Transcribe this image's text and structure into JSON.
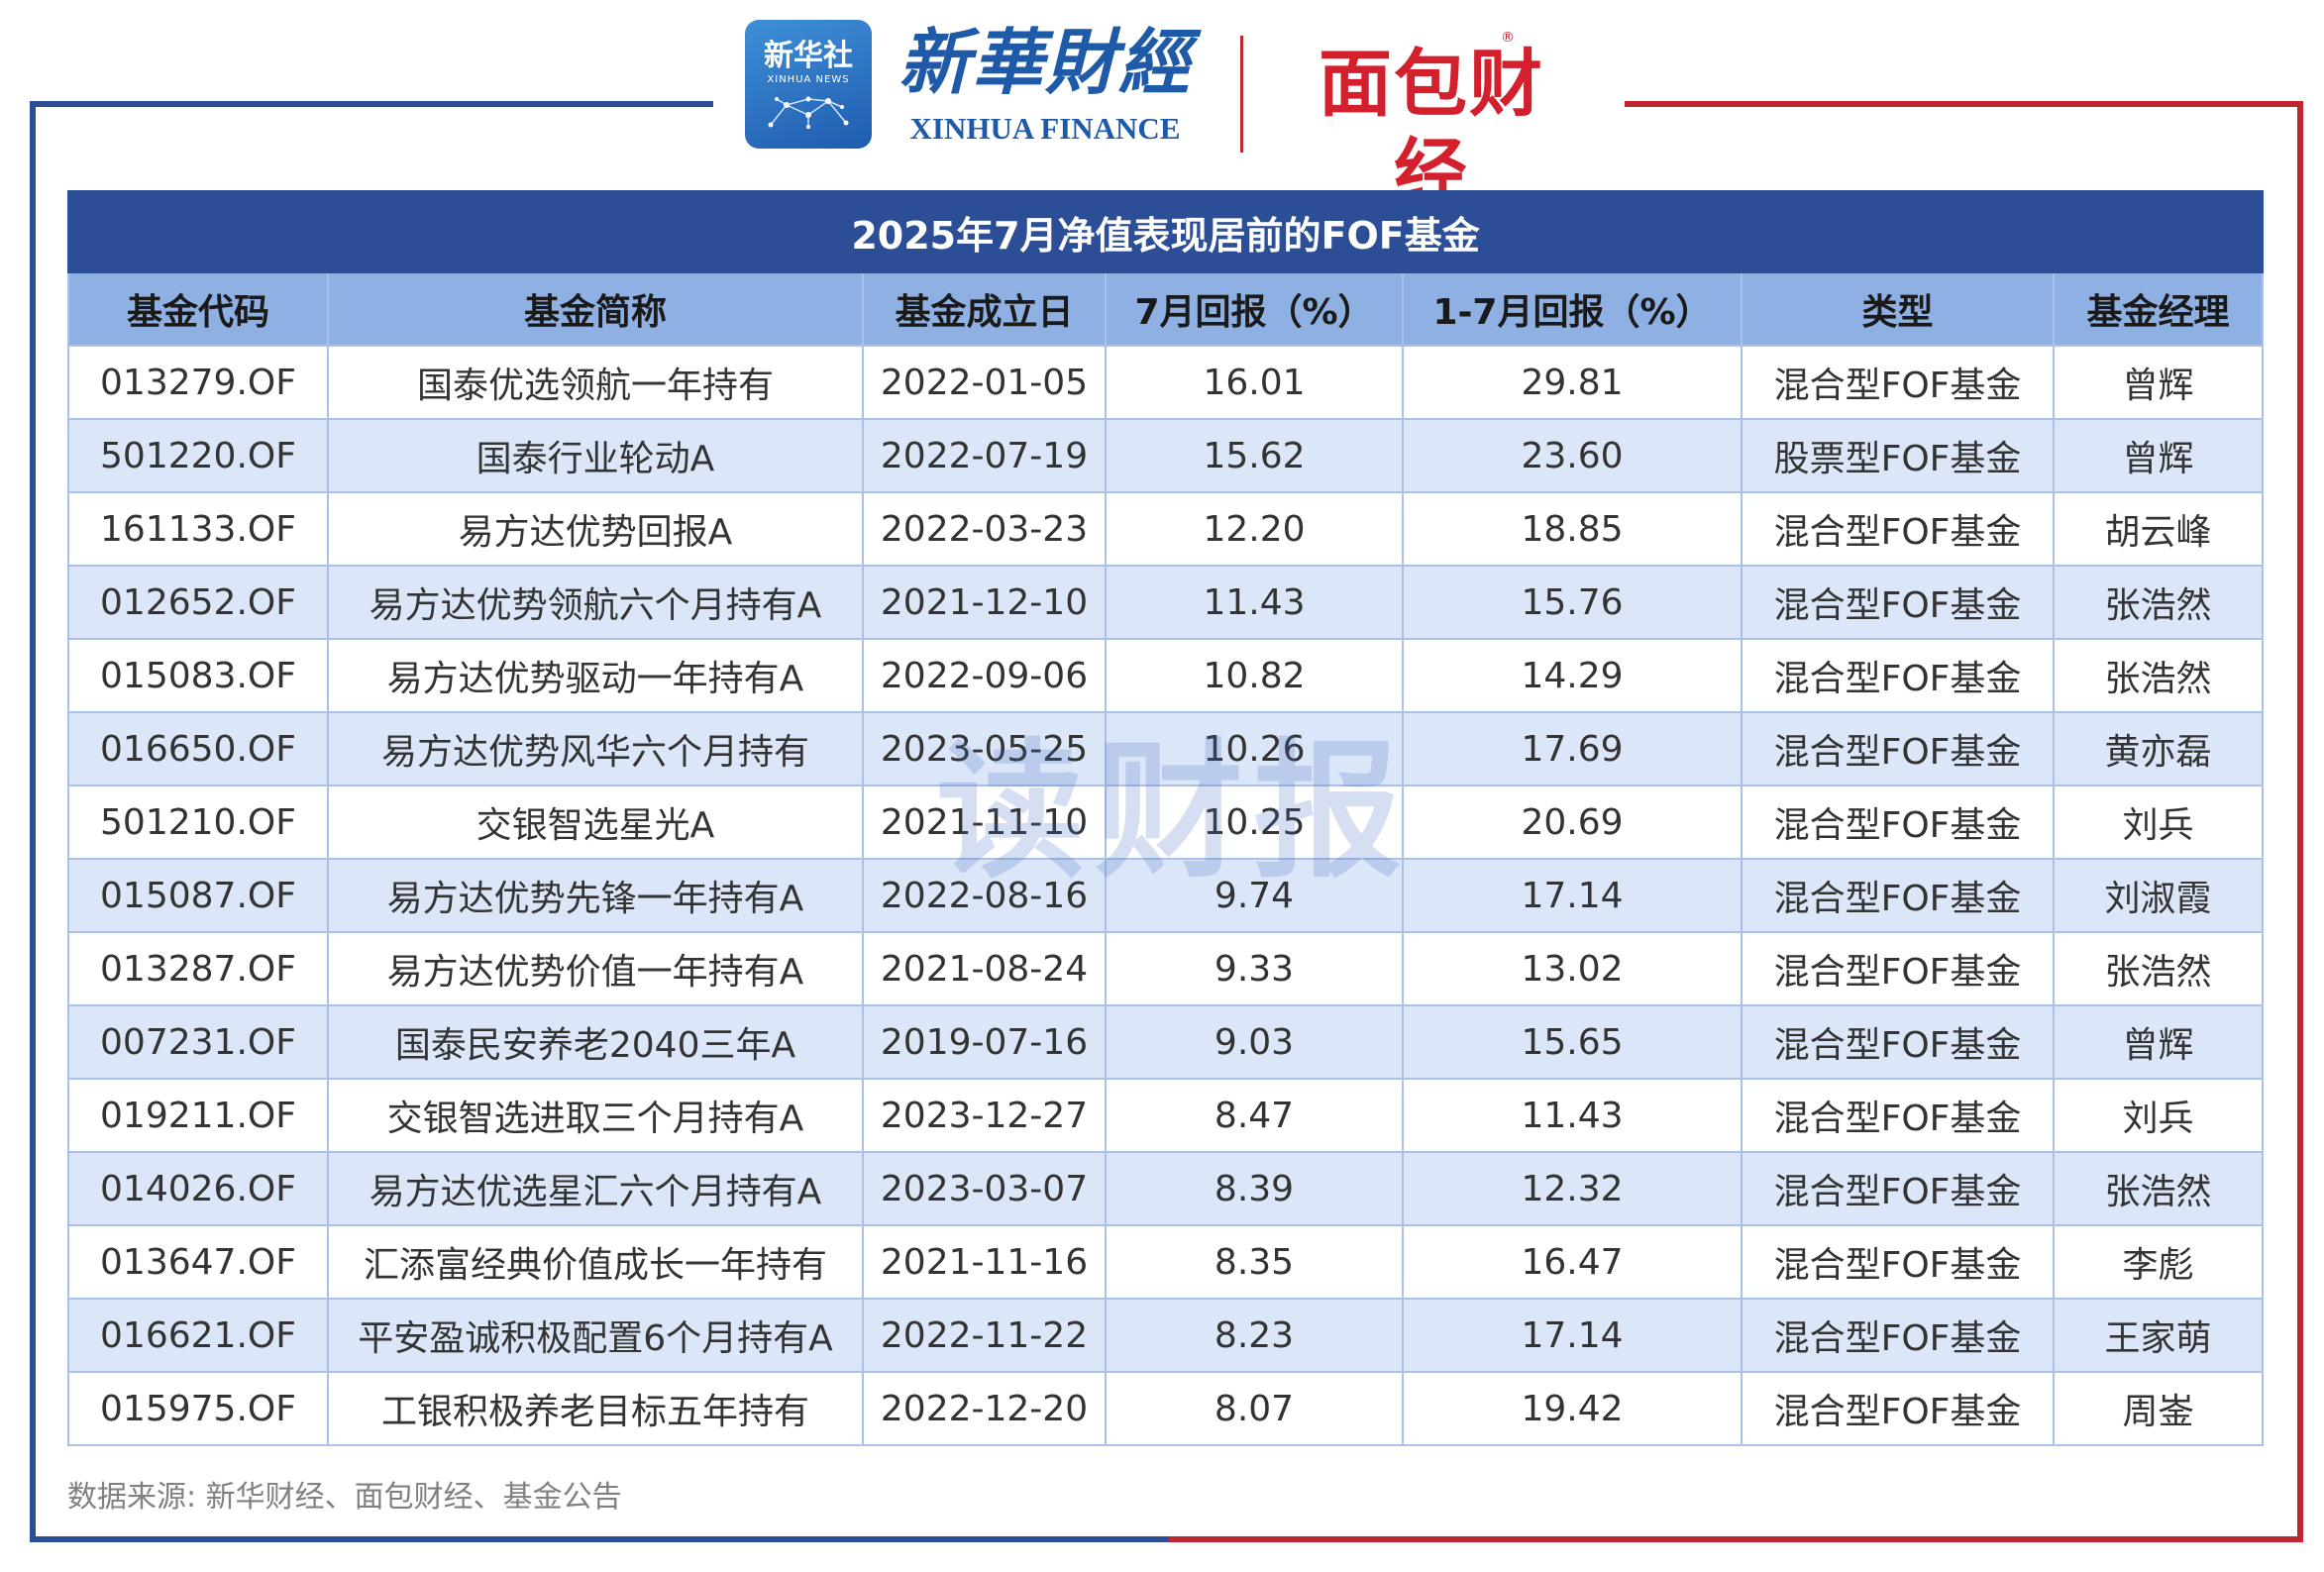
{
  "logos": {
    "xinhua_cn": "新华社",
    "xinhua_en": "XINHUA NEWS",
    "xinhua_finance_cn": "新華財經",
    "xinhua_finance_en": "XINHUA FINANCE",
    "mianbao_cn": "面包财经",
    "mianbao_mark": "®"
  },
  "colors": {
    "header_blue": "#2b4e96",
    "column_blue": "#8eb0e2",
    "row_stripe": "#dbe6f8",
    "brand_red": "#c0262d"
  },
  "table": {
    "title": "2025年7月净值表现居前的FOF基金",
    "columns": [
      "基金代码",
      "基金简称",
      "基金成立日",
      "7月回报（%）",
      "1-7月回报（%）",
      "类型",
      "基金经理"
    ],
    "rows": [
      [
        "013279.OF",
        "国泰优选领航一年持有",
        "2022-01-05",
        "16.01",
        "29.81",
        "混合型FOF基金",
        "曾辉"
      ],
      [
        "501220.OF",
        "国泰行业轮动A",
        "2022-07-19",
        "15.62",
        "23.60",
        "股票型FOF基金",
        "曾辉"
      ],
      [
        "161133.OF",
        "易方达优势回报A",
        "2022-03-23",
        "12.20",
        "18.85",
        "混合型FOF基金",
        "胡云峰"
      ],
      [
        "012652.OF",
        "易方达优势领航六个月持有A",
        "2021-12-10",
        "11.43",
        "15.76",
        "混合型FOF基金",
        "张浩然"
      ],
      [
        "015083.OF",
        "易方达优势驱动一年持有A",
        "2022-09-06",
        "10.82",
        "14.29",
        "混合型FOF基金",
        "张浩然"
      ],
      [
        "016650.OF",
        "易方达优势风华六个月持有",
        "2023-05-25",
        "10.26",
        "17.69",
        "混合型FOF基金",
        "黄亦磊"
      ],
      [
        "501210.OF",
        "交银智选星光A",
        "2021-11-10",
        "10.25",
        "20.69",
        "混合型FOF基金",
        "刘兵"
      ],
      [
        "015087.OF",
        "易方达优势先锋一年持有A",
        "2022-08-16",
        "9.74",
        "17.14",
        "混合型FOF基金",
        "刘淑霞"
      ],
      [
        "013287.OF",
        "易方达优势价值一年持有A",
        "2021-08-24",
        "9.33",
        "13.02",
        "混合型FOF基金",
        "张浩然"
      ],
      [
        "007231.OF",
        "国泰民安养老2040三年A",
        "2019-07-16",
        "9.03",
        "15.65",
        "混合型FOF基金",
        "曾辉"
      ],
      [
        "019211.OF",
        "交银智选进取三个月持有A",
        "2023-12-27",
        "8.47",
        "11.43",
        "混合型FOF基金",
        "刘兵"
      ],
      [
        "014026.OF",
        "易方达优选星汇六个月持有A",
        "2023-03-07",
        "8.39",
        "12.32",
        "混合型FOF基金",
        "张浩然"
      ],
      [
        "013647.OF",
        "汇添富经典价值成长一年持有",
        "2021-11-16",
        "8.35",
        "16.47",
        "混合型FOF基金",
        "李彪"
      ],
      [
        "016621.OF",
        "平安盈诚积极配置6个月持有A",
        "2022-11-22",
        "8.23",
        "17.14",
        "混合型FOF基金",
        "王家萌"
      ],
      [
        "015975.OF",
        "工银积极养老目标五年持有",
        "2022-12-20",
        "8.07",
        "19.42",
        "混合型FOF基金",
        "周崟"
      ]
    ]
  },
  "watermark": "读财报",
  "source": "数据来源: 新华财经、面包财经、基金公告"
}
